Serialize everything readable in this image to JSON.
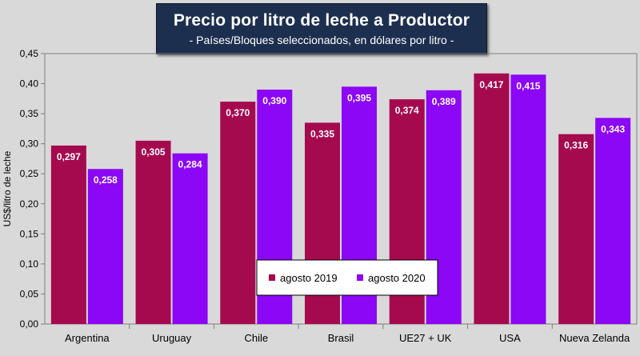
{
  "chart_data": {
    "type": "bar",
    "title": "Precio por litro de leche a Productor",
    "subtitle": "- Países/Bloques seleccionados, en dólares por litro -",
    "xlabel": "",
    "ylabel": "US$/litro de leche",
    "ylim": [
      0,
      0.45
    ],
    "yticks": [
      "0,00",
      "0,05",
      "0,10",
      "0,15",
      "0,20",
      "0,25",
      "0,30",
      "0,35",
      "0,40",
      "0,45"
    ],
    "categories": [
      "Argentina",
      "Uruguay",
      "Chile",
      "Brasil",
      "UE27 + UK",
      "USA",
      "Nueva Zelanda"
    ],
    "series": [
      {
        "name": "agosto 2019",
        "color": "#a50a4f",
        "values": [
          0.297,
          0.305,
          0.37,
          0.335,
          0.374,
          0.417,
          0.316
        ],
        "labels": [
          "0,297",
          "0,305",
          "0,370",
          "0,335",
          "0,374",
          "0,417",
          "0,316"
        ]
      },
      {
        "name": "agosto 2020",
        "color": "#8b07f5",
        "values": [
          0.258,
          0.284,
          0.39,
          0.395,
          0.389,
          0.415,
          0.343
        ],
        "labels": [
          "0,258",
          "0,284",
          "0,390",
          "0,395",
          "0,389",
          "0,415",
          "0,343"
        ]
      }
    ],
    "grid": false,
    "legend": "bottom-center-inside",
    "background_color": "#d9d9d9"
  }
}
